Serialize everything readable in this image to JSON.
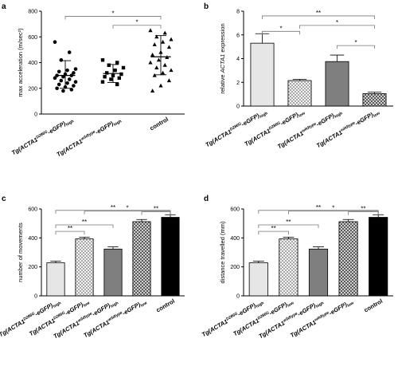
{
  "chart_data": [
    {
      "panel": "a",
      "type": "scatter",
      "ylabel": "max acceleration (m/sec²)",
      "ylim": [
        0,
        800
      ],
      "yticks": [
        0,
        200,
        400,
        600,
        800
      ],
      "categories": [
        "Tg(ACTA1D286G-eGFP)high",
        "Tg(ACTA1wildtype-eGFP)high",
        "control"
      ],
      "category_parts": [
        {
          "pre": "Tg(ACTA1",
          "sup": "D286G",
          "mid": "-eGFP)",
          "sub": "high"
        },
        {
          "pre": "Tg(ACTA1",
          "sup": "wildtype",
          "mid": "-eGFP)",
          "sub": "high"
        },
        {
          "pre": "control",
          "sup": "",
          "mid": "",
          "sub": ""
        }
      ],
      "markers": [
        "circle",
        "square",
        "triangle"
      ],
      "points": [
        [
          560,
          480,
          420,
          350,
          340,
          330,
          320,
          310,
          300,
          300,
          290,
          280,
          270,
          260,
          250,
          240,
          230,
          220,
          210,
          200,
          190,
          180
        ],
        [
          420,
          400,
          380,
          360,
          340,
          320,
          310,
          300,
          290,
          280,
          270,
          250,
          230
        ],
        [
          650,
          630,
          600,
          580,
          560,
          540,
          520,
          480,
          460,
          440,
          420,
          400,
          380,
          360,
          340,
          320,
          300,
          260,
          220,
          180
        ]
      ],
      "mean": [
        300,
        315,
        445
      ],
      "sd_low": [
        200,
        245,
        305
      ],
      "sd_high": [
        415,
        385,
        610
      ],
      "significance": [
        {
          "from": 0,
          "to": 2,
          "label": "*",
          "y": 760
        },
        {
          "from": 1,
          "to": 2,
          "label": "*",
          "y": 690
        }
      ]
    },
    {
      "panel": "b",
      "type": "bar",
      "ylabel": "relative ACTA1 expression",
      "ylabel_parts": {
        "pre": "relative ",
        "ital": "ACTA1",
        "post": " expression"
      },
      "ylim": [
        0,
        8
      ],
      "yticks": [
        0,
        2,
        4,
        6,
        8
      ],
      "categories": [
        "Tg(ACTA1D286G-eGFP)high",
        "Tg(ACTA1D286G-eGFP)low",
        "Tg(ACTA1wildtype-eGFP)high",
        "Tg(ACTA1wildtype-eGFP)low"
      ],
      "category_parts": [
        {
          "pre": "Tg(ACTA1",
          "sup": "D286G",
          "mid": "-eGFP)",
          "sub": "high"
        },
        {
          "pre": "Tg(ACTA1",
          "sup": "D286G",
          "mid": "-eGFP)",
          "sub": "low"
        },
        {
          "pre": "Tg(ACTA1",
          "sup": "wildtype",
          "mid": "-eGFP)",
          "sub": "high"
        },
        {
          "pre": "Tg(ACTA1",
          "sup": "wildtype",
          "mid": "-eGFP)",
          "sub": "low"
        }
      ],
      "values": [
        5.3,
        2.15,
        3.75,
        1.05
      ],
      "errors": [
        0.8,
        0.1,
        0.55,
        0.12
      ],
      "fills": [
        "light",
        "checker-light",
        "dark",
        "checker-dark"
      ],
      "significance": [
        {
          "from": 0,
          "to": 3,
          "label": "**",
          "y": 7.6
        },
        {
          "from": 1,
          "to": 3,
          "label": "*",
          "y": 6.8
        },
        {
          "from": 0,
          "to": 1,
          "label": "*",
          "y": 6.3
        },
        {
          "from": 2,
          "to": 3,
          "label": "*",
          "y": 5.1
        }
      ]
    },
    {
      "panel": "c",
      "type": "bar",
      "ylabel": "number of movements",
      "ylim": [
        0,
        600
      ],
      "yticks": [
        0,
        200,
        400,
        600
      ],
      "categories": [
        "Tg(ACTA1D286G-eGFP)high",
        "Tg(ACTA1D286G-eGFP)low",
        "Tg(ACTA1wildtype-eGFP)high",
        "Tg(ACTA1wildtype-eGFP)low",
        "control"
      ],
      "category_parts": [
        {
          "pre": "Tg(ACTA1",
          "sup": "D286G",
          "mid": "-eGFP)",
          "sub": "high"
        },
        {
          "pre": "Tg(ACTA1",
          "sup": "D286G",
          "mid": "-eGFP)",
          "sub": "low"
        },
        {
          "pre": "Tg(ACTA1",
          "sup": "wildtype",
          "mid": "-eGFP)",
          "sub": "high"
        },
        {
          "pre": "Tg(ACTA1",
          "sup": "wildtype",
          "mid": "-eGFP)",
          "sub": "low"
        },
        {
          "pre": "control",
          "sup": "",
          "mid": "",
          "sub": ""
        }
      ],
      "values": [
        228,
        393,
        323,
        512,
        542
      ],
      "errors": [
        12,
        12,
        15,
        15,
        18
      ],
      "fills": [
        "light",
        "checker-light",
        "dark",
        "checker-dark",
        "black"
      ],
      "significance": [
        {
          "from": 0,
          "to": 4,
          "label": "**",
          "y": 590
        },
        {
          "from": 1,
          "to": 4,
          "label": "*",
          "y": 585
        },
        {
          "from": 3,
          "to": 4,
          "label": "**",
          "y": 580
        },
        {
          "from": 0,
          "to": 2,
          "label": "**",
          "y": 490
        },
        {
          "from": 0,
          "to": 1,
          "label": "**",
          "y": 445
        }
      ]
    },
    {
      "panel": "d",
      "type": "bar",
      "ylabel": "distance travelled (mm)",
      "ylim": [
        0,
        600
      ],
      "yticks": [
        0,
        200,
        400,
        600
      ],
      "categories": [
        "Tg(ACTA1D286G-eGFP)high",
        "Tg(ACTA1D286G-eGFP)low",
        "Tg(ACTA1wildtype-eGFP)high",
        "Tg(ACTA1wildtype-eGFP)low",
        "control"
      ],
      "category_parts": [
        {
          "pre": "Tg(ACTA1",
          "sup": "D286G",
          "mid": "-eGFP)",
          "sub": "high"
        },
        {
          "pre": "Tg(ACTA1",
          "sup": "D286G",
          "mid": "-eGFP)",
          "sub": "low"
        },
        {
          "pre": "Tg(ACTA1",
          "sup": "wildtype",
          "mid": "-eGFP)",
          "sub": "high"
        },
        {
          "pre": "Tg(ACTA1",
          "sup": "wildtype",
          "mid": "-eGFP)",
          "sub": "low"
        },
        {
          "pre": "control",
          "sup": "",
          "mid": "",
          "sub": ""
        }
      ],
      "values": [
        228,
        393,
        323,
        512,
        542
      ],
      "errors": [
        12,
        12,
        15,
        15,
        18
      ],
      "fills": [
        "light",
        "checker-light",
        "dark",
        "checker-dark",
        "black"
      ],
      "significance": [
        {
          "from": 0,
          "to": 4,
          "label": "**",
          "y": 590
        },
        {
          "from": 1,
          "to": 4,
          "label": "*",
          "y": 585
        },
        {
          "from": 3,
          "to": 4,
          "label": "**",
          "y": 580
        },
        {
          "from": 0,
          "to": 2,
          "label": "**",
          "y": 490
        },
        {
          "from": 0,
          "to": 1,
          "label": "**",
          "y": 445
        }
      ]
    }
  ],
  "fill_colors": {
    "light": "#e6e6e6",
    "dark": "#7f7f7f",
    "black": "#000000",
    "checker_light_a": "#f2f2f2",
    "checker_light_b": "#a9a9a9",
    "checker_dark_a": "#d0d0d0",
    "checker_dark_b": "#5a5a5a"
  }
}
